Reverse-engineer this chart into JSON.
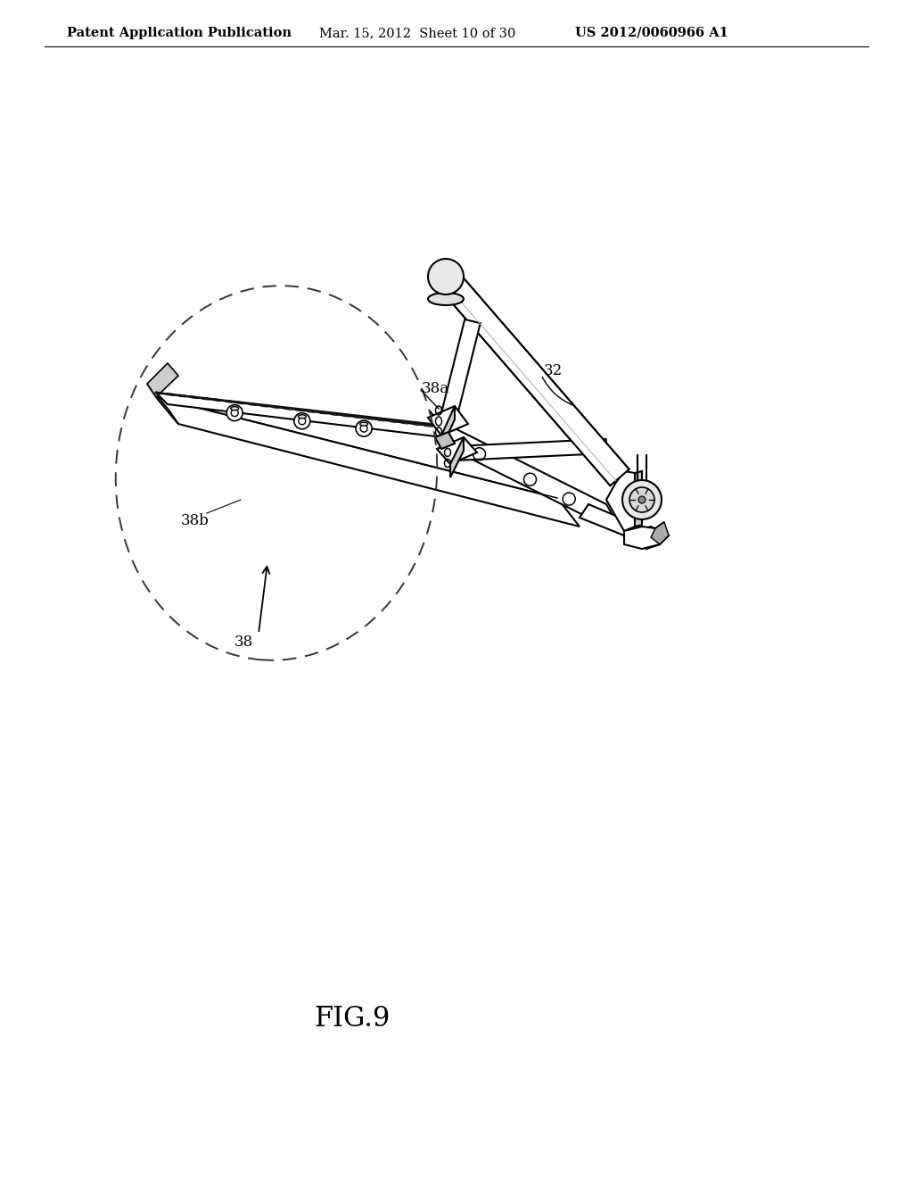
{
  "background_color": "#ffffff",
  "header_left": "Patent Application Publication",
  "header_center": "Mar. 15, 2012  Sheet 10 of 30",
  "header_right": "US 2012/0060966 A1",
  "figure_label": "FIG.9",
  "label_32": "32",
  "label_38": "38",
  "label_38a": "38a",
  "label_38b": "38b",
  "line_color": "#000000",
  "text_color": "#000000",
  "header_fontsize": 10.5,
  "label_fontsize": 12,
  "fig_label_fontsize": 22
}
